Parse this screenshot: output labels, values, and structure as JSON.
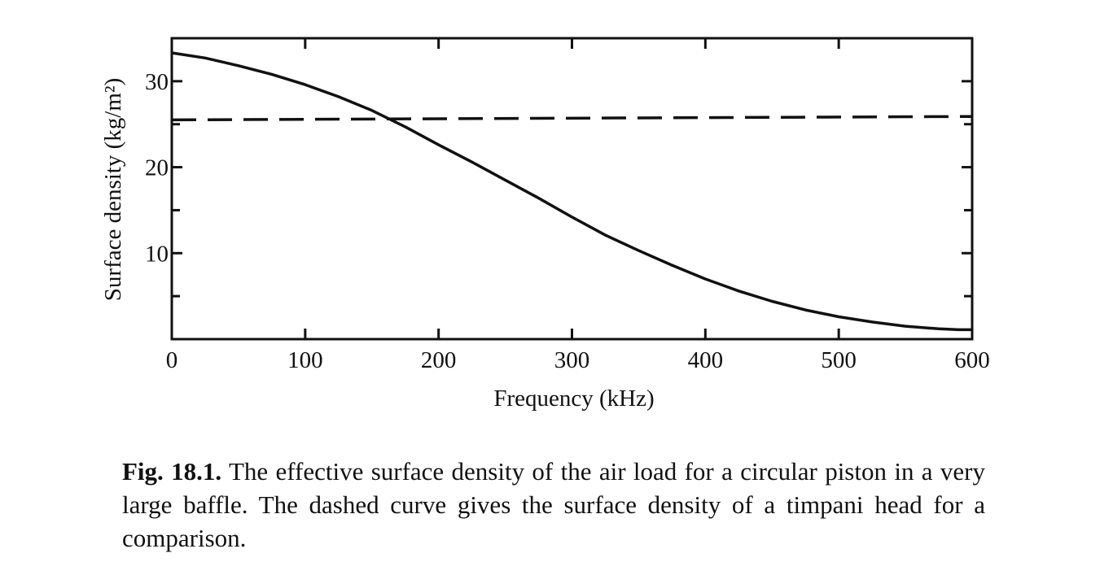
{
  "chart_data": {
    "type": "line",
    "xlabel": "Frequency (kHz)",
    "ylabel": "Surface density (kg/m²)",
    "xlim": [
      0,
      600
    ],
    "ylim": [
      0,
      35
    ],
    "x_ticks": [
      0,
      100,
      200,
      300,
      400,
      500,
      600
    ],
    "x_tick_labels": [
      "0",
      "100",
      "200",
      "300",
      "400",
      "500",
      "600"
    ],
    "y_ticks": [
      10,
      20,
      30
    ],
    "y_tick_labels": [
      "10",
      "20",
      "30"
    ],
    "y_minor_ticks": [
      5,
      15,
      25
    ],
    "grid": false,
    "series": [
      {
        "style": "solid",
        "color": "#111111",
        "x": [
          0,
          25,
          50,
          75,
          100,
          125,
          150,
          175,
          200,
          225,
          250,
          275,
          300,
          325,
          350,
          375,
          400,
          425,
          450,
          475,
          500,
          525,
          550,
          575,
          590,
          600
        ],
        "y": [
          33.3,
          32.7,
          31.8,
          30.8,
          29.6,
          28.2,
          26.6,
          24.7,
          22.6,
          20.6,
          18.5,
          16.4,
          14.2,
          12.1,
          10.3,
          8.6,
          7.0,
          5.6,
          4.4,
          3.4,
          2.6,
          2.0,
          1.5,
          1.2,
          1.1,
          1.1
        ]
      },
      {
        "style": "dashed",
        "color": "#111111",
        "x": [
          0,
          600
        ],
        "y": [
          25.5,
          25.9
        ]
      }
    ]
  },
  "caption": {
    "label": "Fig. 18.1.",
    "text": " The effective surface density of the air load for a circular piston in a very large baffle. The dashed curve gives the surface density of a timpani head for a comparison."
  }
}
